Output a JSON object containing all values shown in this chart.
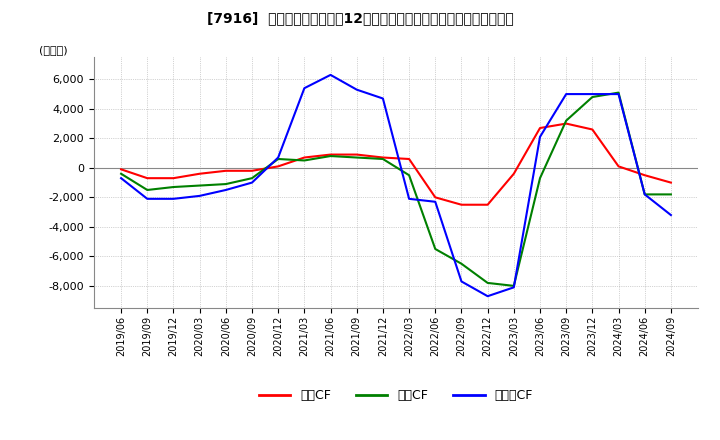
{
  "title": "[7916]  キャッシュフローの12か月移動合計の対前年同期増減額の推移",
  "ylabel": "(百万円)",
  "ylim": [
    -9500,
    7500
  ],
  "yticks": [
    -8000,
    -6000,
    -4000,
    -2000,
    0,
    2000,
    4000,
    6000
  ],
  "background_color": "#ffffff",
  "grid_color": "#aaaaaa",
  "legend": [
    "営業CF",
    "投資CF",
    "フリーCF"
  ],
  "legend_colors": [
    "#ff0000",
    "#008000",
    "#0000ff"
  ],
  "x_labels": [
    "2019/06",
    "2019/09",
    "2019/12",
    "2020/03",
    "2020/06",
    "2020/09",
    "2020/12",
    "2021/03",
    "2021/06",
    "2021/09",
    "2021/12",
    "2022/03",
    "2022/06",
    "2022/09",
    "2022/12",
    "2023/03",
    "2023/06",
    "2023/09",
    "2023/12",
    "2024/03",
    "2024/06",
    "2024/09"
  ],
  "operating_cf": [
    -100,
    -700,
    -700,
    -400,
    -200,
    -200,
    100,
    700,
    900,
    900,
    700,
    600,
    -2000,
    -2500,
    -2500,
    -400,
    2700,
    3000,
    2600,
    100,
    -500,
    -1000
  ],
  "investing_cf": [
    -400,
    -1500,
    -1300,
    -1200,
    -1100,
    -700,
    600,
    500,
    800,
    700,
    600,
    -500,
    -5500,
    -6500,
    -7800,
    -8000,
    -700,
    3200,
    4800,
    5100,
    -1800,
    -1800
  ],
  "free_cf": [
    -700,
    -2100,
    -2100,
    -1900,
    -1500,
    -1000,
    700,
    5400,
    6300,
    5300,
    4700,
    -2100,
    -2300,
    -7700,
    -8700,
    -8100,
    2100,
    5000,
    5000,
    5000,
    -1800,
    -3200
  ]
}
